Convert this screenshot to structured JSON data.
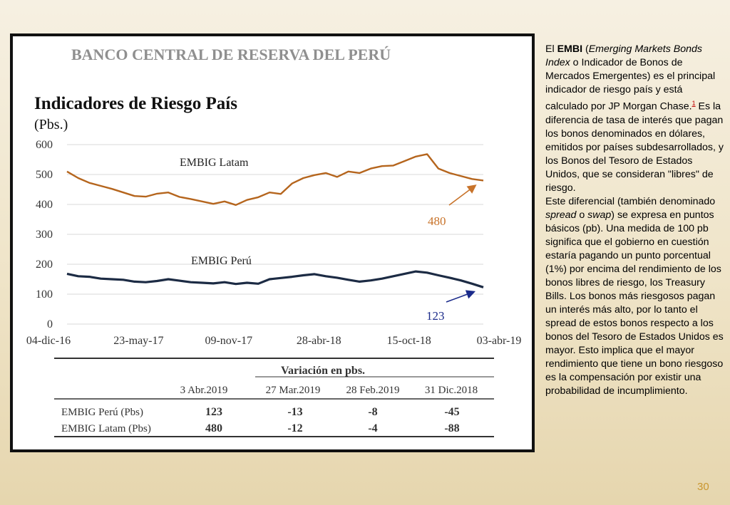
{
  "slide": {
    "page_number": "30",
    "side_text": {
      "p1": [
        {
          "text": "El ",
          "style": "normal"
        },
        {
          "text": "EMBI",
          "style": "bold"
        },
        {
          "text": " (",
          "style": "normal"
        },
        {
          "text": "Emerging Markets Bonds Index",
          "style": "italic"
        },
        {
          "text": " o Indicador de Bonos de Mercados Emergentes) es el principal indicador de riesgo país y está calculado por JP Morgan Chase.",
          "style": "normal"
        },
        {
          "text": "1",
          "style": "footnote"
        },
        {
          "text": " Es la diferencia de tasa de interés que pagan los bonos denominados en dólares, emitidos por países subdesarrollados, y los Bonos del Tesoro de Estados Unidos, que se consideran \"libres\" de riesgo.",
          "style": "normal"
        }
      ],
      "p2": [
        {
          "text": "Este diferencial (también denominado ",
          "style": "normal"
        },
        {
          "text": "spread",
          "style": "italic"
        },
        {
          "text": " o ",
          "style": "normal"
        },
        {
          "text": "swap",
          "style": "italic"
        },
        {
          "text": ") se expresa en puntos básicos (pb). Una medida de 100 pb significa que el gobierno en cuestión estaría pagando un punto porcentual (1%) por encima del rendimiento de los bonos libres de riesgo, los Treasury Bills. Los bonos más riesgosos pagan un interés más alto, por lo tanto el spread de estos bonos respecto a los bonos del Tesoro de Estados Unidos es mayor. Esto implica que el mayor rendimiento que tiene un bono riesgoso es la compensación por existir una probabilidad de incumplimiento.",
          "style": "normal"
        }
      ]
    }
  },
  "chart_data": {
    "type": "line",
    "header": "BANCO CENTRAL DE RESERVA DEL PERÚ",
    "title": "Indicadores de Riesgo País",
    "subtitle": "(Pbs.)",
    "ylim": [
      0,
      600
    ],
    "y_ticks": [
      "600",
      "500",
      "400",
      "300",
      "200",
      "100",
      "0"
    ],
    "x_ticks": [
      "04-dic-16",
      "23-may-17",
      "09-nov-17",
      "28-abr-18",
      "15-oct-18",
      "03-abr-19"
    ],
    "grid": true,
    "colors": {
      "latam": "#b5651d",
      "peru": "#1c2b44",
      "arrow_latam": "#c8732a",
      "arrow_peru": "#1a2a8a"
    },
    "series": [
      {
        "name": "EMBIG Latam",
        "end_label": "480",
        "values": [
          510,
          488,
          472,
          462,
          452,
          440,
          428,
          426,
          436,
          440,
          425,
          418,
          410,
          402,
          410,
          398,
          415,
          424,
          440,
          435,
          470,
          488,
          498,
          505,
          492,
          510,
          505,
          520,
          528,
          530,
          545,
          560,
          568,
          520,
          505,
          495,
          485,
          480
        ]
      },
      {
        "name": "EMBIG Perú",
        "end_label": "123",
        "values": [
          168,
          160,
          158,
          152,
          150,
          148,
          142,
          140,
          144,
          150,
          145,
          140,
          138,
          136,
          140,
          134,
          138,
          135,
          150,
          154,
          158,
          163,
          167,
          160,
          155,
          148,
          142,
          146,
          152,
          160,
          168,
          176,
          172,
          163,
          155,
          146,
          135,
          123
        ]
      }
    ],
    "table": {
      "variation_header": "Variación en pbs.",
      "columns": [
        "3 Abr.2019",
        "27 Mar.2019",
        "28 Feb.2019",
        "31 Dic.2018"
      ],
      "rows": [
        {
          "label": "EMBIG Perú (Pbs)",
          "values": [
            "123",
            "-13",
            "-8",
            "-45"
          ]
        },
        {
          "label": "EMBIG Latam (Pbs)",
          "values": [
            "480",
            "-12",
            "-4",
            "-88"
          ]
        }
      ]
    }
  }
}
